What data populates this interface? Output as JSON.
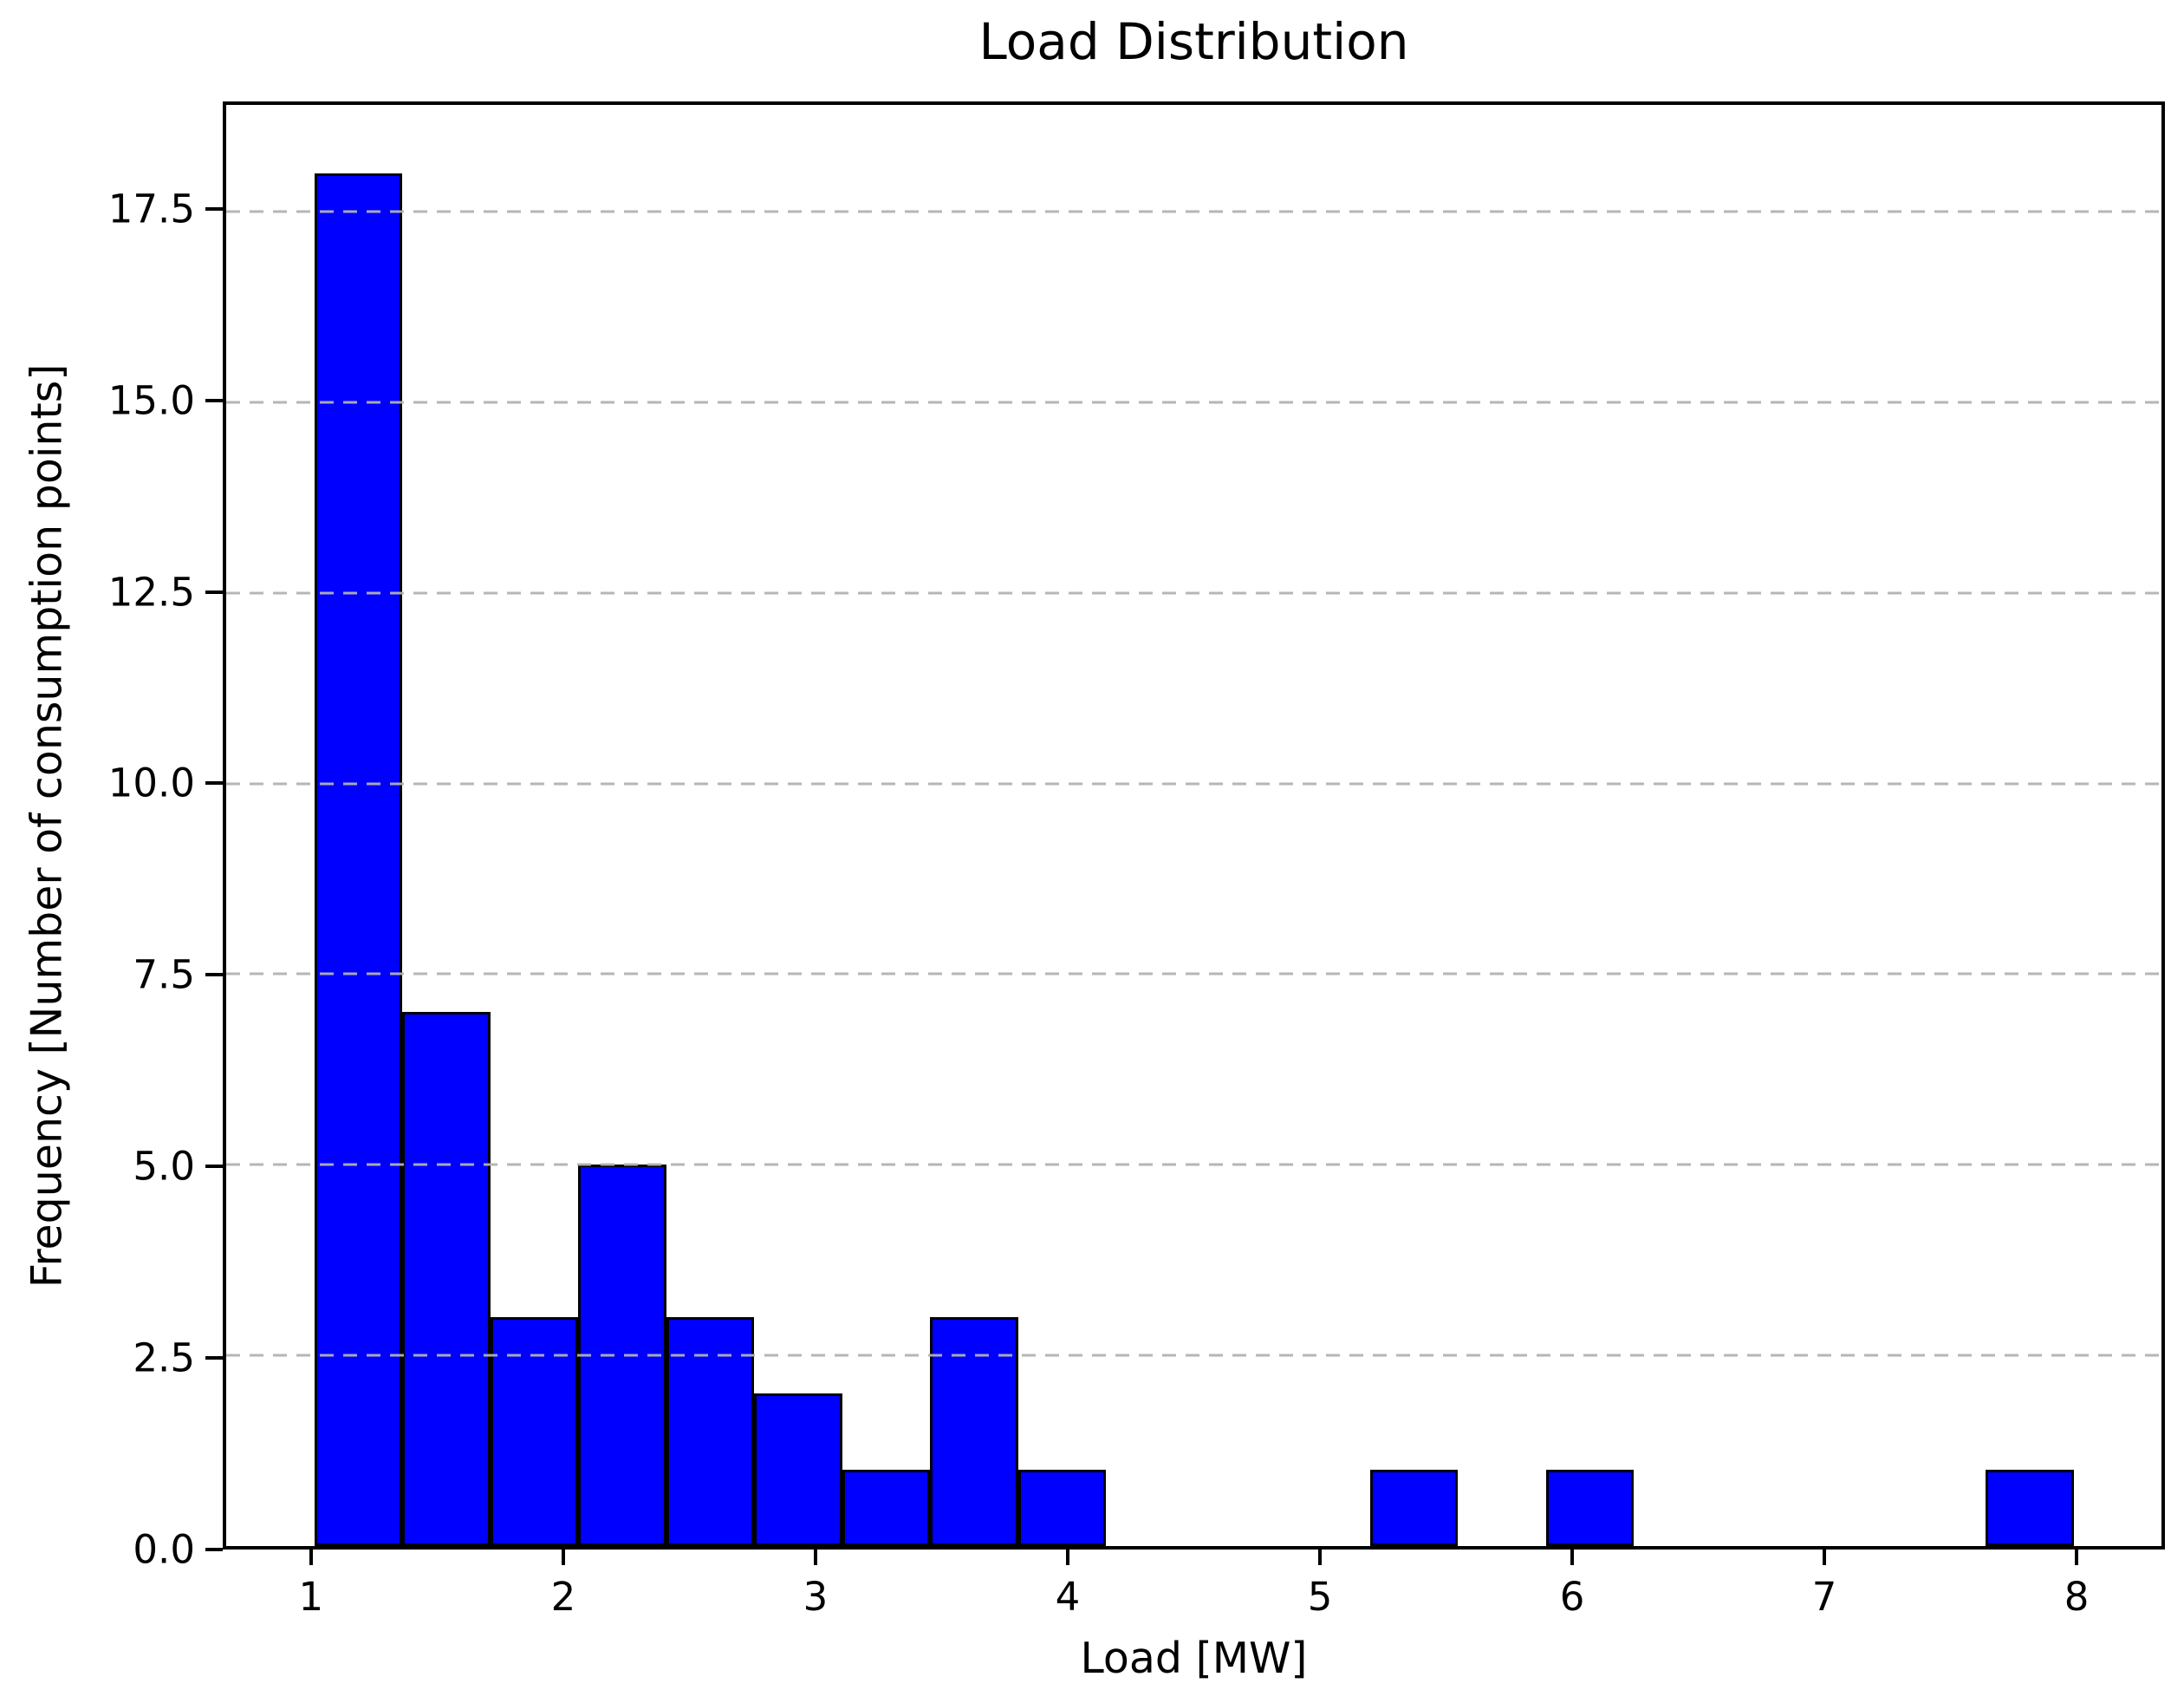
{
  "title": "Load Distribution",
  "axes": {
    "xlabel": "Load [MW]",
    "ylabel": "Frequency [Number of consumption points]"
  },
  "colors": {
    "bar_fill": "#0000ff",
    "bar_edge": "#000000",
    "grid": "#b2b2b2",
    "axis": "#000000",
    "text": "#000000",
    "background": "#ffffff"
  },
  "chart_data": {
    "type": "bar",
    "subtype": "histogram",
    "title": "Load Distribution",
    "xlabel": "Load [MW]",
    "ylabel": "Frequency [Number of consumption points]",
    "bin_edges": [
      1.0,
      1.35,
      1.7,
      2.05,
      2.4,
      2.75,
      3.1,
      3.45,
      3.8,
      4.15,
      4.5,
      4.85,
      5.2,
      5.55,
      5.9,
      6.25,
      6.6,
      6.95,
      7.3,
      7.65,
      8.0
    ],
    "counts": [
      18,
      7,
      3,
      5,
      3,
      2,
      1,
      3,
      1,
      0,
      0,
      0,
      1,
      0,
      1,
      0,
      0,
      0,
      0,
      1
    ],
    "xlim": [
      0.65,
      8.35
    ],
    "ylim": [
      0,
      18.9
    ],
    "x_ticks": [
      1,
      2,
      3,
      4,
      5,
      6,
      7,
      8
    ],
    "x_tick_labels": [
      "1",
      "2",
      "3",
      "4",
      "5",
      "6",
      "7",
      "8"
    ],
    "y_ticks": [
      0,
      2.5,
      5,
      7.5,
      10,
      12.5,
      15,
      17.5
    ],
    "y_tick_labels": [
      "0.0",
      "2.5",
      "5.0",
      "7.5",
      "10.0",
      "12.5",
      "15.0",
      "17.5"
    ],
    "grid": {
      "axis": "y",
      "style": "dashed",
      "above_bars": true
    },
    "legend": null
  }
}
